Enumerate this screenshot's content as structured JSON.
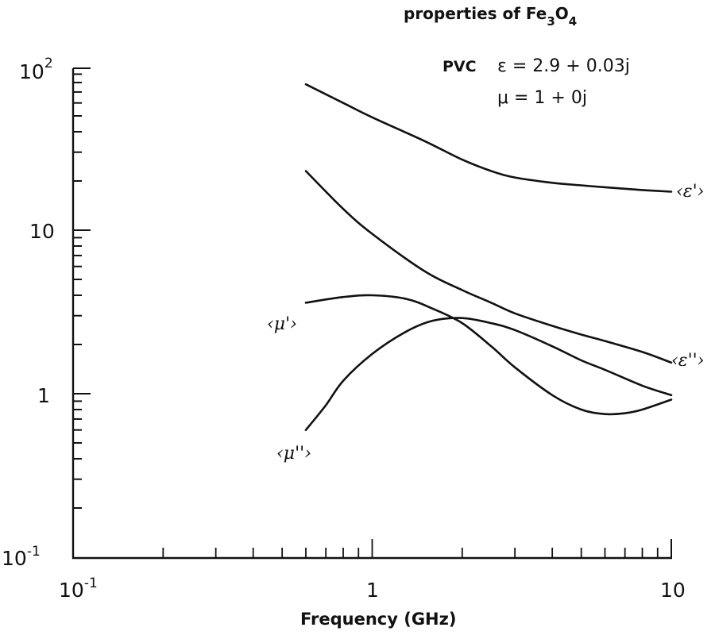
{
  "chart_data": {
    "type": "line",
    "title": "properties of Fe3O4",
    "title_parts": {
      "prefix": "properties of Fe",
      "sub1": "3",
      "mid": "O",
      "sub2": "4"
    },
    "annotations": {
      "matrix_label": "PVC",
      "epsilon_eq": "ε = 2.9 + 0.03j",
      "mu_eq": "μ = 1 + 0j"
    },
    "xlabel": "Frequency (GHz)",
    "ylabel": "",
    "xscale": "log",
    "yscale": "log",
    "xlim": [
      0.1,
      10
    ],
    "ylim": [
      0.1,
      100
    ],
    "x_tick_labels": [
      {
        "value": 0.1,
        "base": "10",
        "exp": "-1"
      },
      {
        "value": 1,
        "base": "1",
        "exp": ""
      },
      {
        "value": 10,
        "base": "10",
        "exp": ""
      }
    ],
    "y_tick_labels": [
      {
        "value": 100,
        "base": "10",
        "exp": "2"
      },
      {
        "value": 10,
        "base": "10",
        "exp": ""
      },
      {
        "value": 1,
        "base": "1",
        "exp": ""
      },
      {
        "value": 0.1,
        "base": "10",
        "exp": "-1"
      }
    ],
    "grid": false,
    "legend": "inline labels at curve ends",
    "series": [
      {
        "name": "⟨ε'⟩",
        "label_text": "‹ε'›",
        "x": [
          0.6,
          0.8,
          1.0,
          1.5,
          2.0,
          2.5,
          3.0,
          4.0,
          5.0,
          6.0,
          8.0,
          10.0
        ],
        "values": [
          78,
          60,
          49,
          35,
          27,
          23,
          21,
          19.5,
          18.8,
          18.3,
          17.6,
          17.2
        ]
      },
      {
        "name": "⟨ε''⟩",
        "label_text": "‹ε''›",
        "x": [
          0.6,
          0.8,
          1.0,
          1.5,
          2.0,
          2.5,
          3.0,
          4.0,
          5.0,
          6.0,
          8.0,
          10.0
        ],
        "values": [
          23,
          13.5,
          9.5,
          5.6,
          4.3,
          3.6,
          3.1,
          2.6,
          2.3,
          2.1,
          1.8,
          1.55
        ]
      },
      {
        "name": "⟨μ'⟩",
        "label_text": "‹μ'›",
        "x": [
          0.6,
          0.8,
          1.0,
          1.3,
          1.6,
          2.0,
          2.5,
          3.0,
          4.0,
          5.0,
          6.0,
          7.0,
          8.0,
          10.0
        ],
        "values": [
          3.6,
          3.9,
          4.0,
          3.8,
          3.3,
          2.7,
          1.95,
          1.45,
          0.98,
          0.8,
          0.75,
          0.76,
          0.8,
          0.92
        ]
      },
      {
        "name": "⟨μ''⟩",
        "label_text": "‹μ''›",
        "x": [
          0.6,
          0.7,
          0.8,
          1.0,
          1.3,
          1.6,
          2.0,
          2.5,
          3.0,
          4.0,
          5.0,
          6.0,
          8.0,
          10.0
        ],
        "values": [
          0.6,
          0.85,
          1.2,
          1.75,
          2.4,
          2.8,
          2.9,
          2.7,
          2.45,
          1.95,
          1.6,
          1.4,
          1.12,
          0.98
        ]
      }
    ]
  }
}
